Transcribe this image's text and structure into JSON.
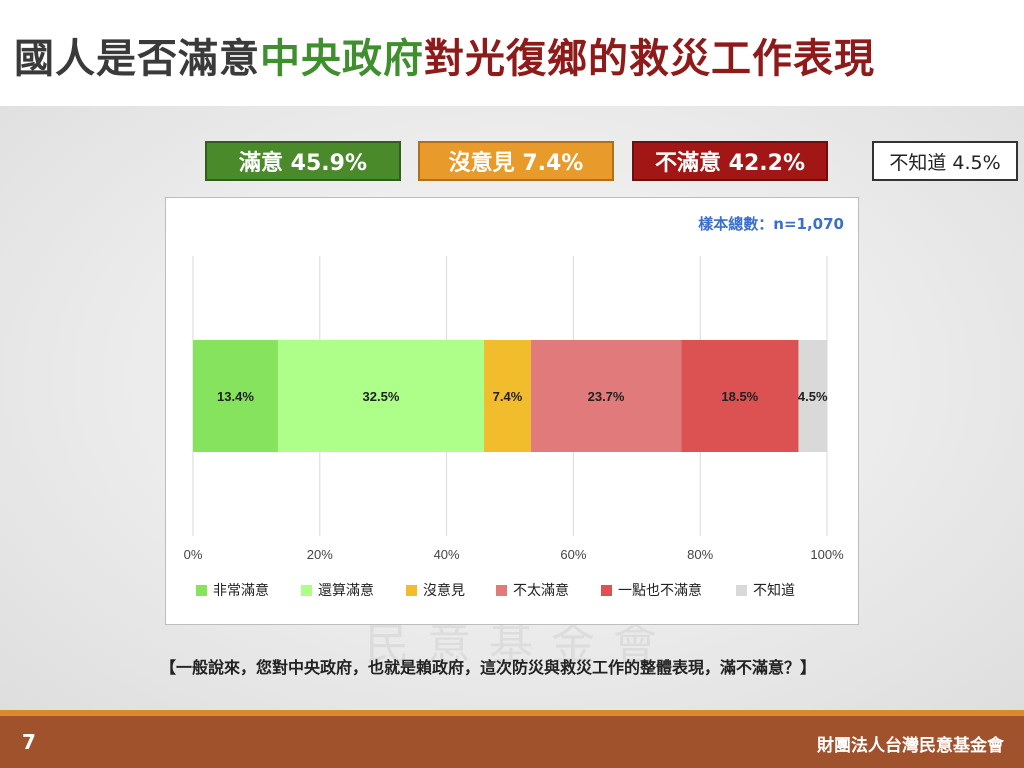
{
  "title": {
    "part1": "國人是否滿意",
    "part2": "中央政府",
    "part3": "對光復鄉的救災工作表現"
  },
  "summary": {
    "satisfied": "滿意 45.9%",
    "no_opinion": "沒意見 7.4%",
    "dissatisfied": "不滿意 42.2%",
    "dont_know": "不知道 4.5%"
  },
  "sample": "樣本總數：n=1,070",
  "question": "【一般說來，您對中央政府，也就是賴政府，這次防災與救災工作的整體表現，滿不滿意？】",
  "page_number": "7",
  "organization": "財團法人台灣民意基金會",
  "colors": {
    "very_satisfied": "#86e35e",
    "fairly_satisfied": "#adff8a",
    "no_opinion": "#f1bd2c",
    "not_very_satisfied": "#e17a7a",
    "not_at_all": "#dc5252",
    "dont_know": "#d9d9d9"
  },
  "chart_data": {
    "type": "bar",
    "orientation": "horizontal-stacked",
    "xlim": [
      0,
      100
    ],
    "x_ticks": [
      "0%",
      "20%",
      "40%",
      "60%",
      "80%",
      "100%"
    ],
    "grid": true,
    "legend_position": "bottom",
    "series": [
      {
        "name": "非常滿意",
        "value": 13.4,
        "label": "13.4%",
        "color": "#86e35e"
      },
      {
        "name": "還算滿意",
        "value": 32.5,
        "label": "32.5%",
        "color": "#adff8a"
      },
      {
        "name": "沒意見",
        "value": 7.4,
        "label": "7.4%",
        "color": "#f1bd2c"
      },
      {
        "name": "不太滿意",
        "value": 23.7,
        "label": "23.7%",
        "color": "#e17a7a"
      },
      {
        "name": "一點也不滿意",
        "value": 18.5,
        "label": "18.5%",
        "color": "#dc5252"
      },
      {
        "name": "不知道",
        "value": 4.5,
        "label": "4.5%",
        "color": "#d9d9d9"
      }
    ]
  }
}
